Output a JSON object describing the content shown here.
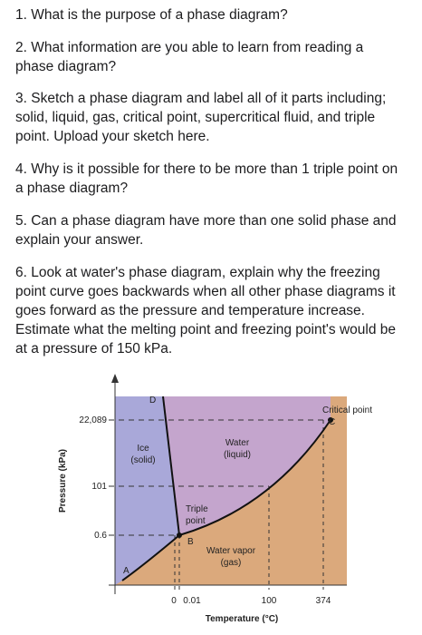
{
  "questions": [
    "1. What is the purpose of a phase diagram?",
    "2. What information are you able to learn from reading a phase diagram?",
    "3. Sketch a phase diagram and label all of it parts including; solid, liquid, gas, critical point, supercritical fluid, and triple point. Upload your sketch here.",
    "4. Why is it possible for there to be more than 1 triple point on a phase diagram?",
    "5. Can a phase diagram have more than one solid phase and explain your answer.",
    "6. Look at water's phase diagram, explain why the freezing point curve goes backwards when all other phase diagrams it goes forward as the pressure and temperature increase. Estimate what the melting point and freezing point's would be at a pressure of 150 kPa."
  ],
  "figure": {
    "y_axis_title": "Pressure (kPa)",
    "x_axis_title": "Temperature (°C)",
    "y_tick_labels": [
      "22,089",
      "101",
      "0.6"
    ],
    "x_tick_labels": [
      "0",
      "0.01",
      "100",
      "374"
    ],
    "ice_label": [
      "Ice",
      "(solid)"
    ],
    "water_label": [
      "Water",
      "(liquid)"
    ],
    "vapor_label": [
      "Water vapor",
      "(gas)"
    ],
    "triple_point_label": [
      "Triple",
      "point"
    ],
    "critical_point_label": "Critical point",
    "point_labels": [
      "A",
      "B",
      "C",
      "D"
    ]
  }
}
